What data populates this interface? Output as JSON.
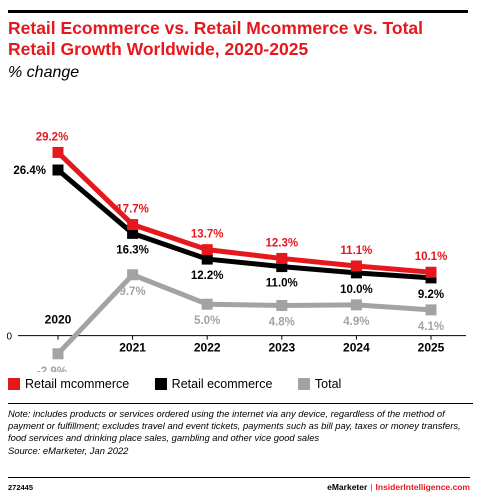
{
  "header": {
    "title_line1": "Retail Ecommerce vs. Retail Mcommerce vs. Total",
    "title_line2": "Retail Growth Worldwide, 2020-2025",
    "subtitle": "% change"
  },
  "chart_data": {
    "type": "line",
    "x": [
      "2020",
      "2021",
      "2022",
      "2023",
      "2024",
      "2025"
    ],
    "ylim": [
      -5,
      32
    ],
    "zero_label": "0",
    "grid": false,
    "legend_position": "bottom",
    "series": [
      {
        "name": "Retail mcommerce",
        "color": "#e4181d",
        "values": [
          29.2,
          17.7,
          13.7,
          12.3,
          11.1,
          10.1
        ],
        "labels": [
          "29.2%",
          "17.7%",
          "13.7%",
          "12.3%",
          "11.1%",
          "10.1%"
        ]
      },
      {
        "name": "Retail ecommerce",
        "color": "#000000",
        "values": [
          26.4,
          16.3,
          12.2,
          11.0,
          10.0,
          9.2
        ],
        "labels": [
          "26.4%",
          "16.3%",
          "12.2%",
          "11.0%",
          "10.0%",
          "9.2%"
        ]
      },
      {
        "name": "Total",
        "color": "#a3a3a3",
        "values": [
          -2.9,
          9.7,
          5.0,
          4.8,
          4.9,
          4.1
        ],
        "labels": [
          "-2.9%",
          "9.7%",
          "5.0%",
          "4.8%",
          "4.9%",
          "4.1%"
        ]
      }
    ]
  },
  "notes": {
    "note": "Note: includes products or services ordered using the internet via any device, regardless of the method of payment or fulfillment; excludes travel and event tickets, payments such as bill pay, taxes or money transfers, food services and drinking place sales, gambling and other vice good sales",
    "source": "Source: eMarketer, Jan 2022"
  },
  "footer": {
    "id": "272445",
    "brand_emarketer": "eMarketer",
    "separator": "|",
    "brand_insider": "InsiderIntelligence.com"
  }
}
